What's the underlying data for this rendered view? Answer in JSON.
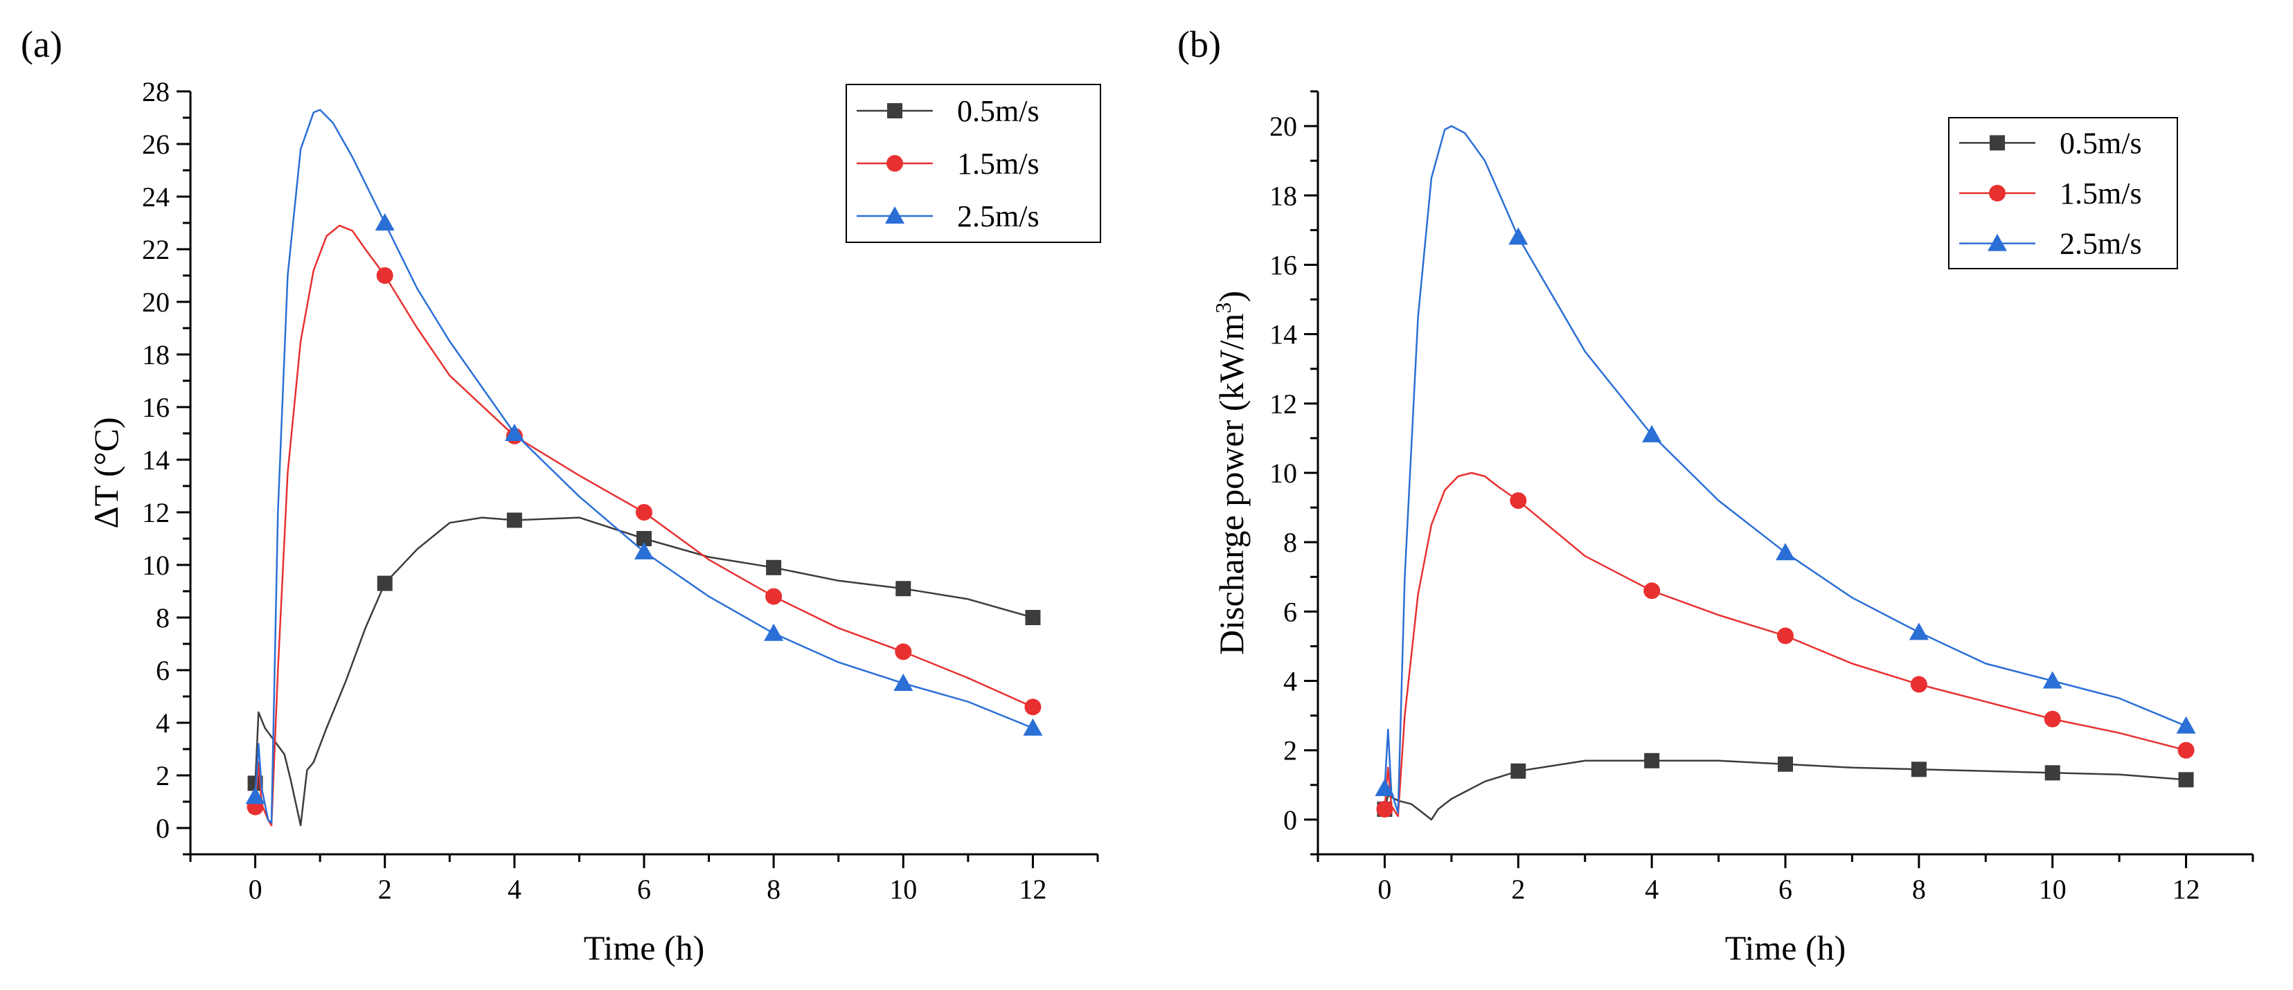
{
  "chart_data": [
    {
      "type": "line",
      "panel_label": "(a)",
      "xlabel": "Time (h)",
      "ylabel": "ΔT (°C)",
      "xlim": [
        -1,
        13
      ],
      "ylim": [
        -1,
        28
      ],
      "xticks": [
        0,
        2,
        4,
        6,
        8,
        10,
        12
      ],
      "yticks": [
        0,
        2,
        4,
        6,
        8,
        10,
        12,
        14,
        16,
        18,
        20,
        22,
        24,
        26,
        28
      ],
      "x_tick_labels": [
        "0",
        "2",
        "4",
        "6",
        "8",
        "10",
        "12"
      ],
      "y_tick_labels": [
        "0",
        "2",
        "4",
        "6",
        "8",
        "10",
        "12",
        "14",
        "16",
        "18",
        "20",
        "22",
        "24",
        "26",
        "28"
      ],
      "legend_position": "top-right",
      "series": [
        {
          "name": "0.5m/s",
          "color": "#3c3c3c",
          "marker": "square",
          "line": [
            [
              0,
              1.7
            ],
            [
              0.05,
              4.4
            ],
            [
              0.15,
              3.8
            ],
            [
              0.3,
              3.3
            ],
            [
              0.45,
              2.8
            ],
            [
              0.55,
              1.8
            ],
            [
              0.7,
              0.1
            ],
            [
              0.8,
              2.2
            ],
            [
              0.9,
              2.5
            ],
            [
              1.1,
              3.8
            ],
            [
              1.4,
              5.6
            ],
            [
              1.7,
              7.6
            ],
            [
              2.0,
              9.3
            ],
            [
              2.5,
              10.6
            ],
            [
              3.0,
              11.6
            ],
            [
              3.5,
              11.8
            ],
            [
              4.0,
              11.7
            ],
            [
              5.0,
              11.8
            ],
            [
              6.0,
              11.0
            ],
            [
              7.0,
              10.3
            ],
            [
              8.0,
              9.9
            ],
            [
              9.0,
              9.4
            ],
            [
              10.0,
              9.1
            ],
            [
              11.0,
              8.7
            ],
            [
              12.0,
              8.0
            ]
          ],
          "markers": [
            [
              0,
              1.7
            ],
            [
              2,
              9.3
            ],
            [
              4,
              11.7
            ],
            [
              6,
              11.0
            ],
            [
              8,
              9.9
            ],
            [
              10,
              9.1
            ],
            [
              12,
              8.0
            ]
          ]
        },
        {
          "name": "1.5m/s",
          "color": "#e83030",
          "marker": "circle",
          "line": [
            [
              0,
              0.8
            ],
            [
              0.05,
              2.5
            ],
            [
              0.1,
              0.9
            ],
            [
              0.2,
              0.3
            ],
            [
              0.25,
              0.1
            ],
            [
              0.35,
              6.0
            ],
            [
              0.5,
              13.5
            ],
            [
              0.7,
              18.5
            ],
            [
              0.9,
              21.2
            ],
            [
              1.1,
              22.5
            ],
            [
              1.3,
              22.9
            ],
            [
              1.5,
              22.7
            ],
            [
              1.7,
              22.0
            ],
            [
              2.0,
              21.0
            ],
            [
              2.5,
              19.0
            ],
            [
              3.0,
              17.2
            ],
            [
              4.0,
              14.9
            ],
            [
              5.0,
              13.4
            ],
            [
              6.0,
              12.0
            ],
            [
              7.0,
              10.2
            ],
            [
              8.0,
              8.8
            ],
            [
              9.0,
              7.6
            ],
            [
              10.0,
              6.7
            ],
            [
              11.0,
              5.7
            ],
            [
              12.0,
              4.6
            ]
          ],
          "markers": [
            [
              0,
              0.8
            ],
            [
              2,
              21.0
            ],
            [
              4,
              14.9
            ],
            [
              6,
              12.0
            ],
            [
              8,
              8.8
            ],
            [
              10,
              6.7
            ],
            [
              12,
              4.6
            ]
          ]
        },
        {
          "name": "2.5m/s",
          "color": "#2a6fd6",
          "marker": "triangle",
          "line": [
            [
              0,
              1.2
            ],
            [
              0.05,
              3.2
            ],
            [
              0.1,
              1.5
            ],
            [
              0.2,
              0.3
            ],
            [
              0.25,
              0.2
            ],
            [
              0.35,
              12.0
            ],
            [
              0.5,
              21.0
            ],
            [
              0.7,
              25.8
            ],
            [
              0.9,
              27.2
            ],
            [
              1.0,
              27.3
            ],
            [
              1.2,
              26.8
            ],
            [
              1.5,
              25.5
            ],
            [
              2.0,
              23.0
            ],
            [
              2.5,
              20.5
            ],
            [
              3.0,
              18.5
            ],
            [
              4.0,
              15.0
            ],
            [
              5.0,
              12.6
            ],
            [
              6.0,
              10.5
            ],
            [
              7.0,
              8.8
            ],
            [
              8.0,
              7.4
            ],
            [
              9.0,
              6.3
            ],
            [
              10.0,
              5.5
            ],
            [
              11.0,
              4.8
            ],
            [
              12.0,
              3.8
            ]
          ],
          "markers": [
            [
              0,
              1.2
            ],
            [
              2,
              23.0
            ],
            [
              4,
              15.0
            ],
            [
              6,
              10.5
            ],
            [
              8,
              7.4
            ],
            [
              10,
              5.5
            ],
            [
              12,
              3.8
            ]
          ]
        }
      ]
    },
    {
      "type": "line",
      "panel_label": "(b)",
      "xlabel": "Time (h)",
      "ylabel_main": "Discharge power (kW/m",
      "ylabel_sup": "3",
      "ylabel_end": ")",
      "xlim": [
        -1,
        13
      ],
      "ylim": [
        -1,
        21
      ],
      "xticks": [
        0,
        2,
        4,
        6,
        8,
        10,
        12
      ],
      "yticks": [
        0,
        2,
        4,
        6,
        8,
        10,
        12,
        14,
        16,
        18,
        20
      ],
      "x_tick_labels": [
        "0",
        "2",
        "4",
        "6",
        "8",
        "10",
        "12"
      ],
      "y_tick_labels": [
        "0",
        "2",
        "4",
        "6",
        "8",
        "10",
        "12",
        "14",
        "16",
        "18",
        "20"
      ],
      "legend_position": "top-right",
      "series": [
        {
          "name": "0.5m/s",
          "color": "#3c3c3c",
          "marker": "square",
          "line": [
            [
              0,
              0.3
            ],
            [
              0.05,
              0.7
            ],
            [
              0.2,
              0.55
            ],
            [
              0.4,
              0.45
            ],
            [
              0.6,
              0.15
            ],
            [
              0.7,
              0.0
            ],
            [
              0.8,
              0.3
            ],
            [
              1.0,
              0.6
            ],
            [
              1.5,
              1.1
            ],
            [
              2.0,
              1.4
            ],
            [
              3.0,
              1.7
            ],
            [
              4.0,
              1.7
            ],
            [
              5.0,
              1.7
            ],
            [
              6.0,
              1.6
            ],
            [
              7.0,
              1.5
            ],
            [
              8.0,
              1.45
            ],
            [
              9.0,
              1.4
            ],
            [
              10.0,
              1.35
            ],
            [
              11.0,
              1.3
            ],
            [
              12.0,
              1.15
            ]
          ],
          "markers": [
            [
              0,
              0.3
            ],
            [
              2,
              1.4
            ],
            [
              4,
              1.7
            ],
            [
              6,
              1.6
            ],
            [
              8,
              1.45
            ],
            [
              10,
              1.35
            ],
            [
              12,
              1.15
            ]
          ]
        },
        {
          "name": "1.5m/s",
          "color": "#e83030",
          "marker": "circle",
          "line": [
            [
              0,
              0.3
            ],
            [
              0.05,
              1.5
            ],
            [
              0.1,
              0.4
            ],
            [
              0.2,
              0.1
            ],
            [
              0.3,
              3.0
            ],
            [
              0.5,
              6.5
            ],
            [
              0.7,
              8.5
            ],
            [
              0.9,
              9.5
            ],
            [
              1.1,
              9.9
            ],
            [
              1.3,
              10.0
            ],
            [
              1.5,
              9.9
            ],
            [
              1.7,
              9.6
            ],
            [
              2.0,
              9.2
            ],
            [
              3.0,
              7.6
            ],
            [
              4.0,
              6.6
            ],
            [
              5.0,
              5.9
            ],
            [
              6.0,
              5.3
            ],
            [
              7.0,
              4.5
            ],
            [
              8.0,
              3.9
            ],
            [
              9.0,
              3.4
            ],
            [
              10.0,
              2.9
            ],
            [
              11.0,
              2.5
            ],
            [
              12.0,
              2.0
            ]
          ],
          "markers": [
            [
              0,
              0.3
            ],
            [
              2,
              9.2
            ],
            [
              4,
              6.6
            ],
            [
              6,
              5.3
            ],
            [
              8,
              3.9
            ],
            [
              10,
              2.9
            ],
            [
              12,
              2.0
            ]
          ]
        },
        {
          "name": "2.5m/s",
          "color": "#2a6fd6",
          "marker": "triangle",
          "line": [
            [
              0,
              0.9
            ],
            [
              0.05,
              2.6
            ],
            [
              0.1,
              0.8
            ],
            [
              0.2,
              0.2
            ],
            [
              0.3,
              7.0
            ],
            [
              0.5,
              14.5
            ],
            [
              0.7,
              18.5
            ],
            [
              0.9,
              19.9
            ],
            [
              1.0,
              20.0
            ],
            [
              1.2,
              19.8
            ],
            [
              1.5,
              19.0
            ],
            [
              2.0,
              16.8
            ],
            [
              3.0,
              13.5
            ],
            [
              4.0,
              11.1
            ],
            [
              5.0,
              9.2
            ],
            [
              6.0,
              7.7
            ],
            [
              7.0,
              6.4
            ],
            [
              8.0,
              5.4
            ],
            [
              9.0,
              4.5
            ],
            [
              10.0,
              4.0
            ],
            [
              11.0,
              3.5
            ],
            [
              12.0,
              2.7
            ]
          ],
          "markers": [
            [
              0,
              0.9
            ],
            [
              2,
              16.8
            ],
            [
              4,
              11.1
            ],
            [
              6,
              7.7
            ],
            [
              8,
              5.4
            ],
            [
              10,
              4.0
            ],
            [
              12,
              2.7
            ]
          ]
        }
      ]
    }
  ]
}
